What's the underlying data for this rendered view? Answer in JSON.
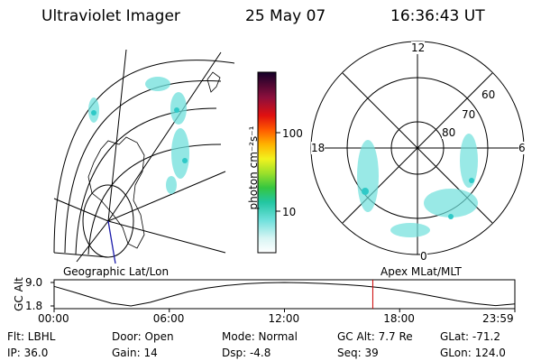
{
  "header": {
    "instrument": "Ultraviolet Imager",
    "date": "25 May 07",
    "time": "16:36:43 UT"
  },
  "colors": {
    "aurora": "#6fe0dc",
    "aurora_dark": "#2fc9c7",
    "marker": "#cc0000",
    "track_blue": "#1a1aaa"
  },
  "geo_panel": {
    "label": "Geographic Lat/Lon"
  },
  "polar_panel": {
    "label": "Apex MLat/MLT",
    "mlt_labels": {
      "top": "12",
      "left": "18",
      "right": "6",
      "bottom": "0"
    },
    "ring_labels": [
      "60",
      "70",
      "80"
    ]
  },
  "colorbar": {
    "unit_label": "photon cm⁻²s⁻¹",
    "scale": "log",
    "tick_labels": [
      "100",
      "10"
    ]
  },
  "chart_data": [
    {
      "type": "line",
      "title": "",
      "ylabel": "GC Alt",
      "y_tick_labels": [
        "9.0",
        "1.8"
      ],
      "ylim": [
        1.8,
        9.0
      ],
      "x_tick_labels": [
        "00:00",
        "06:00",
        "12:00",
        "18:00",
        "23:59"
      ],
      "x": [
        0,
        1,
        2,
        3,
        4,
        5,
        6,
        7,
        8,
        9,
        10,
        11,
        12,
        13,
        14,
        15,
        16,
        17,
        18,
        19,
        20,
        21,
        22,
        23,
        24
      ],
      "values": [
        7.8,
        6.1,
        4.3,
        2.6,
        1.8,
        2.9,
        4.6,
        6.2,
        7.3,
        8.1,
        8.6,
        8.9,
        9.0,
        8.9,
        8.7,
        8.4,
        8.0,
        7.4,
        6.6,
        5.6,
        4.5,
        3.4,
        2.5,
        1.9,
        2.4
      ],
      "current_time_marker": "16:36"
    }
  ],
  "status": {
    "flt": "Flt: LBHL",
    "ip": "IP: 36.0",
    "door": "Door: Open",
    "gain": "Gain: 14",
    "mode": "Mode: Normal",
    "dsp": "Dsp:    -4.8",
    "gc_alt": "GC Alt: 7.7 Re",
    "seq": "Seq: 39",
    "glat": "GLat: -71.2",
    "glon": "GLon: 124.0"
  }
}
